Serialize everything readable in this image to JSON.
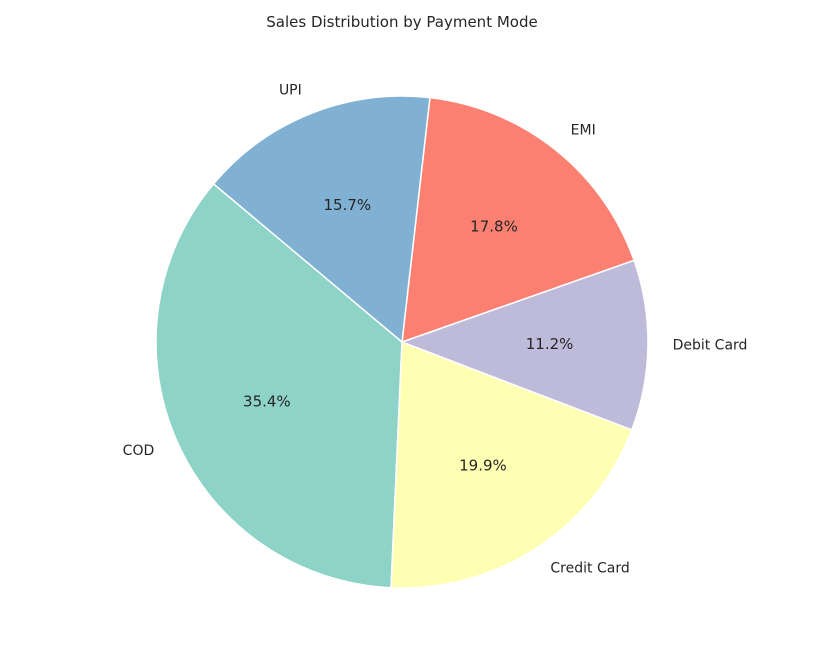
{
  "chart_data": {
    "type": "pie",
    "title": "Sales Distribution by Payment Mode",
    "categories": [
      "COD",
      "Credit Card",
      "Debit Card",
      "EMI",
      "UPI"
    ],
    "values": [
      35.4,
      19.9,
      11.2,
      17.8,
      15.7
    ],
    "percent_labels": [
      "35.4%",
      "19.9%",
      "11.2%",
      "17.8%",
      "15.7%"
    ],
    "colors": [
      "#8dd3c7",
      "#ffffb3",
      "#bebada",
      "#fb8072",
      "#80b1d3"
    ],
    "start_angle_deg": 140,
    "direction": "counterclockwise",
    "legend": "none"
  }
}
